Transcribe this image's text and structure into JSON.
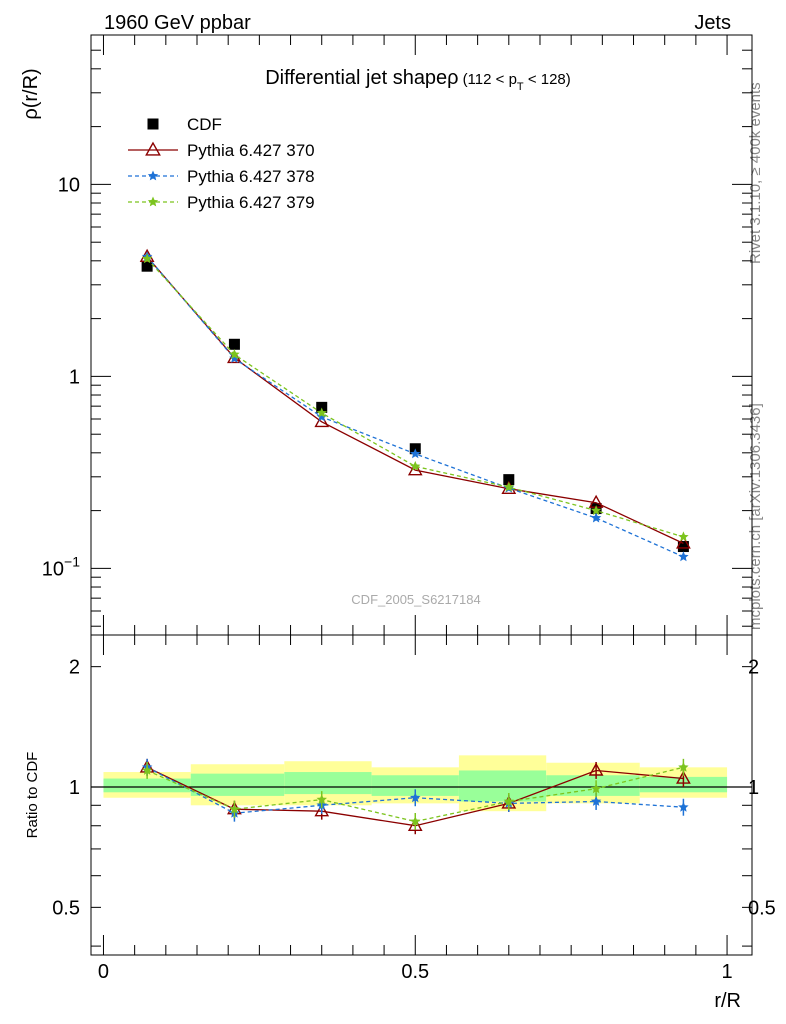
{
  "header": {
    "left": "1960 GeV ppbar",
    "right": "Jets"
  },
  "side_labels": {
    "rivet": "Rivet 3.1.10, ≥ 400k events",
    "mcplots": "mcplots.cern.ch [arXiv:1306.3436]"
  },
  "watermark": "CDF_2005_S6217184",
  "colors": {
    "cdf": "#000000",
    "p370": "#8b0000",
    "p378": "#1e72d6",
    "p379": "#7cc41e",
    "band_outer": "#ffff99",
    "band_inner": "#99ff99"
  },
  "chart_data": [
    {
      "type": "scatter",
      "title": "Differential jet shapeρ",
      "title_suffix": "(112 < p",
      "title_sub": "T",
      "title_end": " < 128)",
      "ylabel": "ρ(r/R)",
      "yscale": "log",
      "ylim": [
        0.045,
        60
      ],
      "yticks": [
        {
          "value": 10,
          "label": "10"
        },
        {
          "value": 1,
          "label": "1"
        },
        {
          "value": 0.1,
          "label": "10",
          "sup": "−1"
        }
      ],
      "x": [
        0.07,
        0.21,
        0.35,
        0.5,
        0.65,
        0.79,
        0.93
      ],
      "series": [
        {
          "name": "CDF",
          "key": "cdf",
          "values": [
            3.75,
            1.47,
            0.69,
            0.42,
            0.29,
            0.205,
            0.13
          ]
        },
        {
          "name": "Pythia 6.427 370",
          "key": "p370",
          "values": [
            4.2,
            1.25,
            0.58,
            0.325,
            0.26,
            0.22,
            0.135
          ]
        },
        {
          "name": "Pythia 6.427 378",
          "key": "p378",
          "values": [
            4.2,
            1.24,
            0.615,
            0.395,
            0.262,
            0.183,
            0.115
          ]
        },
        {
          "name": "Pythia 6.427 379",
          "key": "p379",
          "values": [
            4.1,
            1.3,
            0.645,
            0.34,
            0.265,
            0.2,
            0.146
          ]
        }
      ],
      "legend": "top-left"
    },
    {
      "type": "line",
      "ylabel": "Ratio to CDF",
      "xlabel": "r/R",
      "xlim": [
        -0.02,
        1.04
      ],
      "ylim": [
        0.38,
        2.4
      ],
      "yscale": "log",
      "yticks": [
        {
          "value": 2,
          "label": "2"
        },
        {
          "value": 1,
          "label": "1"
        },
        {
          "value": 0.5,
          "label": "0.5"
        }
      ],
      "xticks": [
        {
          "value": 0,
          "label": "0"
        },
        {
          "value": 0.5,
          "label": "0.5"
        },
        {
          "value": 1,
          "label": "1"
        }
      ],
      "bin_edges": [
        0,
        0.14,
        0.29,
        0.43,
        0.57,
        0.71,
        0.86,
        1.0
      ],
      "band_outer": [
        [
          0.94,
          1.09
        ],
        [
          0.9,
          1.14
        ],
        [
          0.9,
          1.16
        ],
        [
          0.91,
          1.12
        ],
        [
          0.87,
          1.2
        ],
        [
          0.91,
          1.15
        ],
        [
          0.94,
          1.12
        ]
      ],
      "band_inner": [
        [
          0.97,
          1.05
        ],
        [
          0.95,
          1.08
        ],
        [
          0.96,
          1.09
        ],
        [
          0.95,
          1.07
        ],
        [
          0.92,
          1.1
        ],
        [
          0.95,
          1.07
        ],
        [
          0.97,
          1.06
        ]
      ],
      "x": [
        0.07,
        0.21,
        0.35,
        0.5,
        0.65,
        0.79,
        0.93
      ],
      "series": [
        {
          "name": "Pythia 6.427 370",
          "key": "p370",
          "values": [
            1.12,
            0.88,
            0.87,
            0.8,
            0.91,
            1.1,
            1.05
          ]
        },
        {
          "name": "Pythia 6.427 378",
          "key": "p378",
          "values": [
            1.12,
            0.86,
            0.9,
            0.94,
            0.91,
            0.92,
            0.89
          ]
        },
        {
          "name": "Pythia 6.427 379",
          "key": "p379",
          "values": [
            1.1,
            0.88,
            0.93,
            0.82,
            0.92,
            0.99,
            1.12
          ]
        }
      ]
    }
  ]
}
